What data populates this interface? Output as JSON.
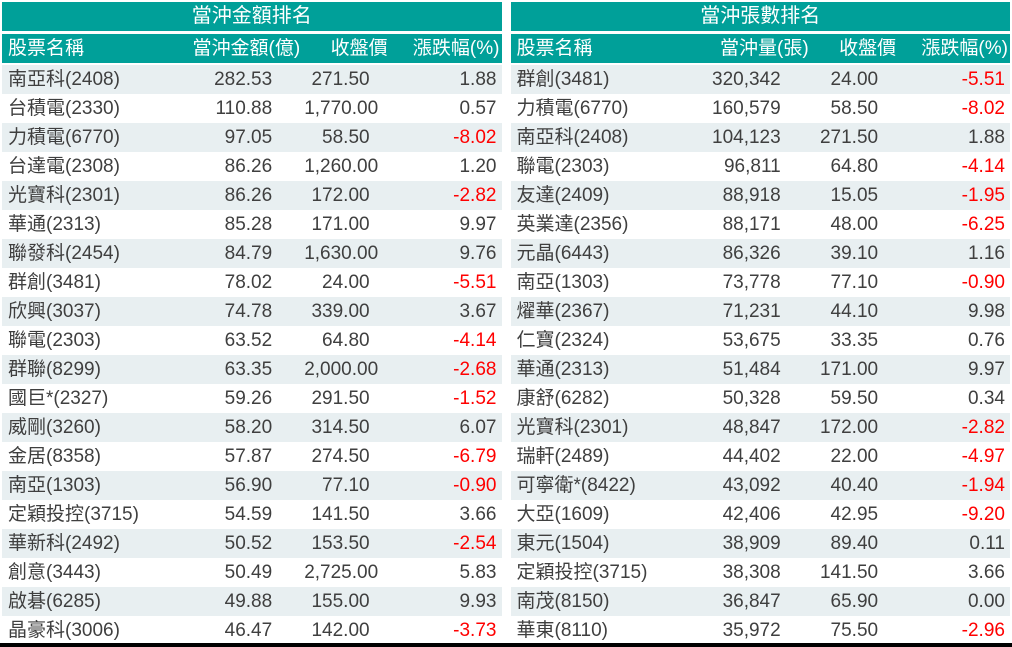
{
  "colors": {
    "header_teal": "#00a099",
    "header_text": "#ffffff",
    "row_alt_bg": "#e8eff1",
    "row_bg": "#ffffff",
    "text": "#3f3f3f",
    "negative": "#ff0000",
    "bottom_bar": "#000000"
  },
  "chart_data": [
    {
      "type": "table",
      "title": "當沖金額排名",
      "columns": [
        "股票名稱",
        "當沖金額(億)",
        "收盤價",
        "漲跌幅(%)"
      ],
      "rows": [
        [
          "南亞科(2408)",
          "282.53",
          "271.50",
          "1.88"
        ],
        [
          "台積電(2330)",
          "110.88",
          "1,770.00",
          "0.57"
        ],
        [
          "力積電(6770)",
          "97.05",
          "58.50",
          "-8.02"
        ],
        [
          "台達電(2308)",
          "86.26",
          "1,260.00",
          "1.20"
        ],
        [
          "光寶科(2301)",
          "86.26",
          "172.00",
          "-2.82"
        ],
        [
          "華通(2313)",
          "85.28",
          "171.00",
          "9.97"
        ],
        [
          "聯發科(2454)",
          "84.79",
          "1,630.00",
          "9.76"
        ],
        [
          "群創(3481)",
          "78.02",
          "24.00",
          "-5.51"
        ],
        [
          "欣興(3037)",
          "74.78",
          "339.00",
          "3.67"
        ],
        [
          "聯電(2303)",
          "63.52",
          "64.80",
          "-4.14"
        ],
        [
          "群聯(8299)",
          "63.35",
          "2,000.00",
          "-2.68"
        ],
        [
          "國巨*(2327)",
          "59.26",
          "291.50",
          "-1.52"
        ],
        [
          "威剛(3260)",
          "58.20",
          "314.50",
          "6.07"
        ],
        [
          "金居(8358)",
          "57.87",
          "274.50",
          "-6.79"
        ],
        [
          "南亞(1303)",
          "56.90",
          "77.10",
          "-0.90"
        ],
        [
          "定穎投控(3715)",
          "54.59",
          "141.50",
          "3.66"
        ],
        [
          "華新科(2492)",
          "50.52",
          "153.50",
          "-2.54"
        ],
        [
          "創意(3443)",
          "50.49",
          "2,725.00",
          "5.83"
        ],
        [
          "啟碁(6285)",
          "49.88",
          "155.00",
          "9.93"
        ],
        [
          "晶豪科(3006)",
          "46.47",
          "142.00",
          "-3.73"
        ]
      ]
    },
    {
      "type": "table",
      "title": "當沖張數排名",
      "columns": [
        "股票名稱",
        "當沖量(張)",
        "收盤價",
        "漲跌幅(%)"
      ],
      "rows": [
        [
          "群創(3481)",
          "320,342",
          "24.00",
          "-5.51"
        ],
        [
          "力積電(6770)",
          "160,579",
          "58.50",
          "-8.02"
        ],
        [
          "南亞科(2408)",
          "104,123",
          "271.50",
          "1.88"
        ],
        [
          "聯電(2303)",
          "96,811",
          "64.80",
          "-4.14"
        ],
        [
          "友達(2409)",
          "88,918",
          "15.05",
          "-1.95"
        ],
        [
          "英業達(2356)",
          "88,171",
          "48.00",
          "-6.25"
        ],
        [
          "元晶(6443)",
          "86,326",
          "39.10",
          "1.16"
        ],
        [
          "南亞(1303)",
          "73,778",
          "77.10",
          "-0.90"
        ],
        [
          "燿華(2367)",
          "71,231",
          "44.10",
          "9.98"
        ],
        [
          "仁寶(2324)",
          "53,675",
          "33.35",
          "0.76"
        ],
        [
          "華通(2313)",
          "51,484",
          "171.00",
          "9.97"
        ],
        [
          "康舒(6282)",
          "50,328",
          "59.50",
          "0.34"
        ],
        [
          "光寶科(2301)",
          "48,847",
          "172.00",
          "-2.82"
        ],
        [
          "瑞軒(2489)",
          "44,402",
          "22.00",
          "-4.97"
        ],
        [
          "可寧衛*(8422)",
          "43,092",
          "40.40",
          "-1.94"
        ],
        [
          "大亞(1609)",
          "42,406",
          "42.95",
          "-9.20"
        ],
        [
          "東元(1504)",
          "38,909",
          "89.40",
          "0.11"
        ],
        [
          "定穎投控(3715)",
          "38,308",
          "141.50",
          "3.66"
        ],
        [
          "南茂(8150)",
          "36,847",
          "65.90",
          "0.00"
        ],
        [
          "華東(8110)",
          "35,972",
          "75.50",
          "-2.96"
        ]
      ]
    }
  ]
}
